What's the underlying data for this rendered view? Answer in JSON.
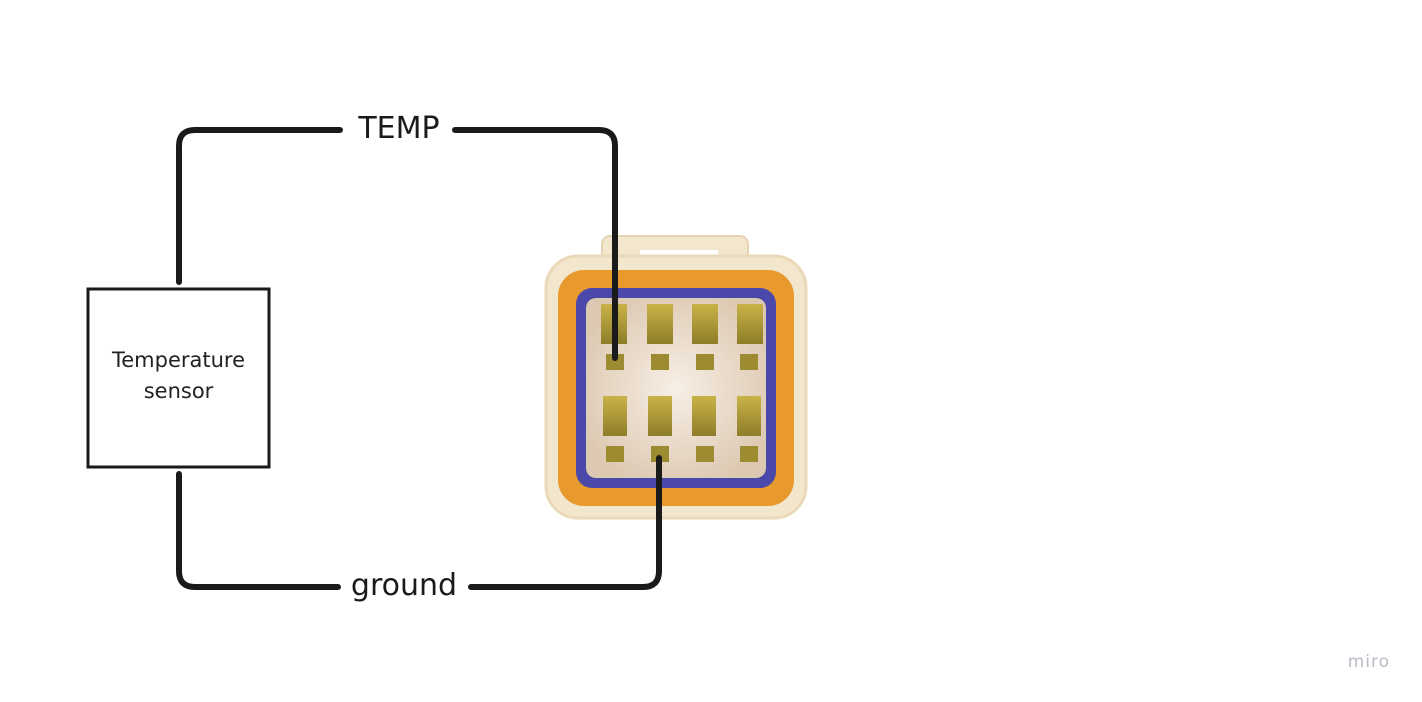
{
  "diagram": {
    "sensor_box": {
      "label_lines": [
        "Temperature",
        "sensor"
      ]
    },
    "wires": {
      "top": {
        "label": "TEMP"
      },
      "bottom": {
        "label": "ground"
      }
    },
    "connector": {
      "name": "connector-plug",
      "pin_rows": 2,
      "pins_per_row": 4,
      "colors": {
        "housing": "#f2e6cc",
        "outer_seal": "#e89a2c",
        "inner_seal": "#4a48a8",
        "face": "#efe2d0",
        "pin": "#b7a23a"
      }
    }
  },
  "watermark": {
    "text": "miro"
  }
}
